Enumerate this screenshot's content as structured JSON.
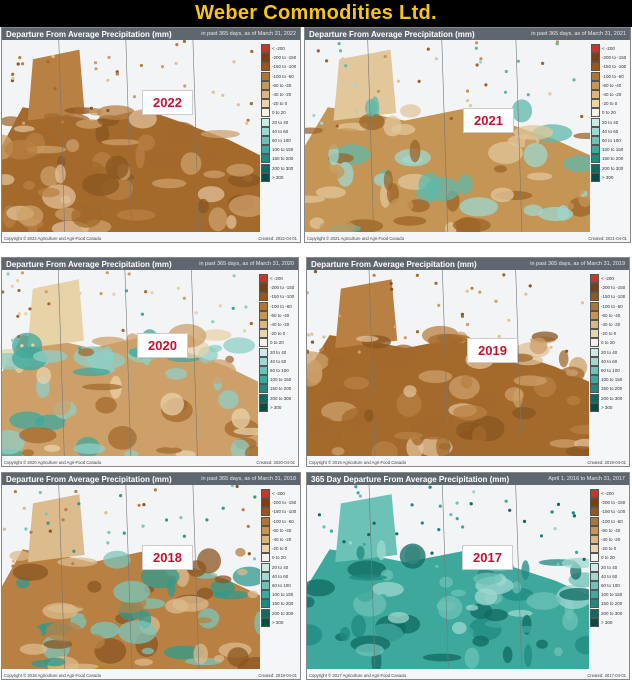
{
  "banner": {
    "title": "Weber Commodities Ltd."
  },
  "colors": {
    "banner_bg": "#000000",
    "banner_text": "#f5c518",
    "year_label": "#c8102e"
  },
  "legend_colors": [
    "#c0392b",
    "#7b3f12",
    "#96561c",
    "#b07434",
    "#c89556",
    "#ddb57f",
    "#ecd3a8",
    "#f5f1e6",
    "#cdeae6",
    "#9fd8d0",
    "#6cc2b7",
    "#3ea89c",
    "#1f8a7f",
    "#0f6b62",
    "#064d46",
    "#5b1f6b"
  ],
  "panels": [
    {
      "year": "2022",
      "title": "Departure From Average Precipitation (mm)",
      "subtitle": "in past 365 days, as of March 31, 2022",
      "palette": "dry",
      "legend": [
        "< -200",
        "-200 to -150",
        "-150 to -100",
        "-100 to -60",
        "-60 to -40",
        "-40 to -20",
        "-20 to 0",
        "0 to 20",
        "20 to 40",
        "40 to 60",
        "60 to 100",
        "100 to 150",
        "150 to 200",
        "200 to 300",
        "> 300"
      ],
      "footer": "Copyright © 2022 Agriculture and Agri-Food Canada",
      "footer_right": "Created: 2022-04-01"
    },
    {
      "year": "2021",
      "title": "Departure From Average Precipitation (mm)",
      "subtitle": "in past 365 days, as of March 31, 2021",
      "palette": "mixed",
      "legend": [
        "< -200",
        "-200 to -150",
        "-150 to -100",
        "-100 to -60",
        "-60 to -40",
        "-40 to -20",
        "-20 to 0",
        "0 to 20",
        "20 to 40",
        "40 to 60",
        "60 to 100",
        "100 to 150",
        "150 to 200",
        "200 to 300",
        "> 300"
      ],
      "footer": "Copyright © 2021 Agriculture and Agri-Food Canada",
      "footer_right": "Created: 2021-04-01"
    },
    {
      "year": "2020",
      "title": "Departure From Average Precipitation (mm)",
      "subtitle": "in past 365 days, as of March 31, 2020",
      "palette": "mixed2",
      "legend": [
        "< -200",
        "-200 to -150",
        "-150 to -100",
        "-100 to -60",
        "-60 to -40",
        "-40 to -20",
        "-20 to 0",
        "0 to 20",
        "20 to 40",
        "40 to 60",
        "60 to 100",
        "100 to 150",
        "150 to 200",
        "200 to 300",
        "> 300"
      ],
      "footer": "Copyright © 2020 Agriculture and Agri-Food Canada",
      "footer_right": "Created: 2020-04-01"
    },
    {
      "year": "2019",
      "title": "Departure From Average Precipitation (mm)",
      "subtitle": "in past 365 days, as of March 31, 2019",
      "palette": "dry",
      "legend": [
        "< -200",
        "-200 to -150",
        "-150 to -100",
        "-100 to -60",
        "-60 to -40",
        "-40 to -20",
        "-20 to 0",
        "0 to 20",
        "20 to 40",
        "40 to 60",
        "60 to 100",
        "100 to 150",
        "150 to 200",
        "200 to 300",
        "> 300"
      ],
      "footer": "Copyright © 2019 Agriculture and Agri-Food Canada",
      "footer_right": "Created: 2019-04-01"
    },
    {
      "year": "2018",
      "title": "Departure From Average Precipitation (mm)",
      "subtitle": "in past 365 days, as of March 31, 2018",
      "palette": "mixed3",
      "legend": [
        "< -200",
        "-200 to -150",
        "-150 to -100",
        "-100 to -60",
        "-60 to -40",
        "-40 to -20",
        "-20 to 0",
        "0 to 20",
        "20 to 40",
        "40 to 60",
        "60 to 100",
        "100 to 150",
        "150 to 200",
        "200 to 300",
        "> 300"
      ],
      "footer": "Copyright © 2018 Agriculture and Agri-Food Canada",
      "footer_right": "Created: 2018-04-01"
    },
    {
      "year": "2017",
      "title": "365 Day Departure From Average Precipitation (mm)",
      "subtitle": "April 1, 2016 to March 31, 2017",
      "palette": "wet",
      "legend": [
        "< -200",
        "-200 to -150",
        "-150 to -100",
        "-100 to -60",
        "-60 to -40",
        "-40 to -20",
        "-20 to 0",
        "0 to 20",
        "20 to 40",
        "40 to 60",
        "60 to 100",
        "100 to 150",
        "150 to 200",
        "200 to 300",
        "> 300"
      ],
      "footer": "Copyright © 2017 Agriculture and Agri-Food Canada",
      "footer_right": "Created: 2017-04-01"
    }
  ]
}
